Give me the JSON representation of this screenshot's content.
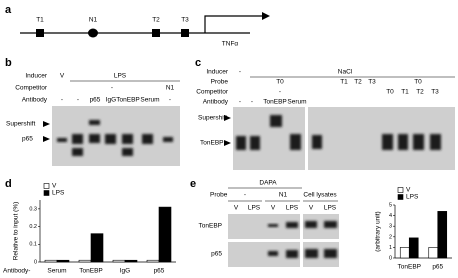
{
  "panels": {
    "a": {
      "label": "a",
      "sites": [
        "T1",
        "N1",
        "T2",
        "T3"
      ],
      "gene": "TNFα"
    },
    "b": {
      "label": "b",
      "row_labels": [
        "Inducer",
        "Competitor",
        "Antibody"
      ],
      "inducer": [
        "V",
        "LPS"
      ],
      "competitor": [
        "-",
        "N1"
      ],
      "antibody": [
        "-",
        "-",
        "p65",
        "IgG",
        "TonEBP",
        "Serum",
        "-"
      ],
      "bands": [
        "Supershift",
        "p65"
      ]
    },
    "c": {
      "label": "c",
      "row_labels": [
        "Inducer",
        "Probe",
        "Competitor",
        "Antibody"
      ],
      "inducer": [
        "-",
        "NaCl"
      ],
      "probe": [
        "T0",
        "T1",
        "T2",
        "T3",
        "T0"
      ],
      "competitor": [
        "-",
        "T0",
        "T1",
        "T2",
        "T3"
      ],
      "antibody": [
        "-",
        "-",
        "TonEBP",
        "Serum"
      ],
      "bands": [
        "Supershift",
        "TonEBP"
      ]
    },
    "d": {
      "label": "d"
    },
    "e": {
      "label": "e",
      "title": "DAPA",
      "probe_label": "Probe",
      "probe": [
        "-",
        "N1",
        "Cell lysates"
      ],
      "lanes": [
        "V",
        "LPS",
        "V",
        "LPS",
        "V",
        "LPS"
      ],
      "rows": [
        "TonEBP",
        "p65"
      ]
    }
  },
  "chart_data": [
    {
      "type": "bar",
      "categories": [
        "Serum",
        "TonEBP",
        "IgG",
        "p65"
      ],
      "xlabel": "Antibody-",
      "ylabel": "Relative to input (%)",
      "series": [
        {
          "name": "V",
          "color": "#ffffff",
          "values": [
            0.01,
            0.01,
            0.01,
            0.01
          ]
        },
        {
          "name": "LPS",
          "color": "#000000",
          "values": [
            0.01,
            0.16,
            0.01,
            0.31
          ]
        }
      ],
      "ylim": [
        0,
        0.35
      ],
      "yticks": [
        0,
        0.1,
        0.2,
        0.3
      ]
    },
    {
      "type": "bar",
      "categories": [
        "TonEBP",
        "p65"
      ],
      "ylabel": "(arbitrary unit)",
      "series": [
        {
          "name": "V",
          "color": "#ffffff",
          "values": [
            1,
            1
          ]
        },
        {
          "name": "LPS",
          "color": "#000000",
          "values": [
            1.9,
            4.4
          ]
        }
      ],
      "ylim": [
        0,
        5
      ],
      "yticks": [
        0,
        1,
        2,
        3,
        4,
        5
      ]
    }
  ]
}
